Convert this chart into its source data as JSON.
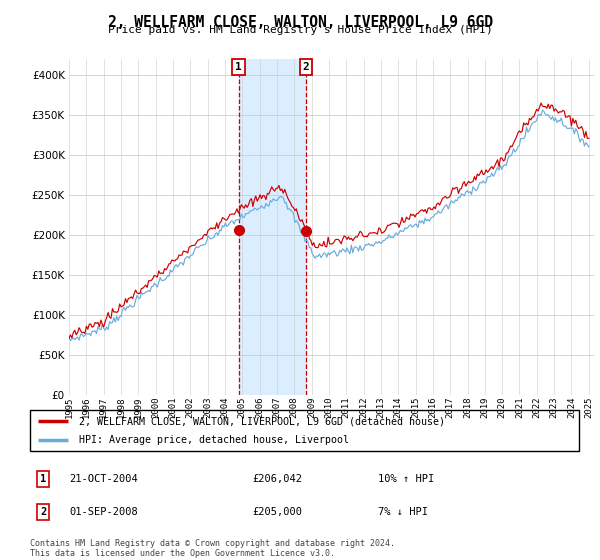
{
  "title": "2, WELLFARM CLOSE, WALTON, LIVERPOOL, L9 6GD",
  "subtitle": "Price paid vs. HM Land Registry's House Price Index (HPI)",
  "legend_line1": "2, WELLFARM CLOSE, WALTON, LIVERPOOL, L9 6GD (detached house)",
  "legend_line2": "HPI: Average price, detached house, Liverpool",
  "annotation1_date": "21-OCT-2004",
  "annotation1_price": "£206,042",
  "annotation1_hpi": "10% ↑ HPI",
  "annotation2_date": "01-SEP-2008",
  "annotation2_price": "£205,000",
  "annotation2_hpi": "7% ↓ HPI",
  "footer": "Contains HM Land Registry data © Crown copyright and database right 2024.\nThis data is licensed under the Open Government Licence v3.0.",
  "hpi_color": "#6aabdc",
  "price_color": "#cc0000",
  "span_color": "#daeeff",
  "yticks": [
    0,
    50000,
    100000,
    150000,
    200000,
    250000,
    300000,
    350000,
    400000
  ],
  "sale1_year": 2004.79,
  "sale1_price": 206042,
  "sale2_year": 2008.67,
  "sale2_price": 205000
}
